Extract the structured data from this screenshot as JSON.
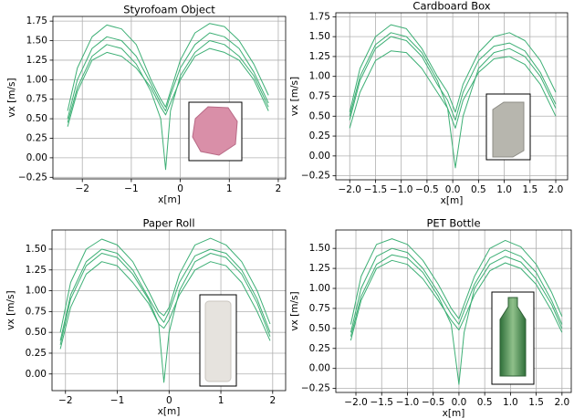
{
  "chart_data": [
    {
      "type": "line",
      "title": "Styrofoam Object",
      "xlabel": "x[m]",
      "ylabel": "vx [m/s]",
      "color": "#3daf75",
      "grid": true,
      "xlim": [
        -2.6,
        2.15
      ],
      "ylim": [
        -0.27,
        1.81
      ],
      "xticks": [
        {
          "value": -2,
          "label": "−2"
        },
        {
          "value": -1,
          "label": "−1"
        },
        0,
        1,
        2
      ],
      "yticks": [
        {
          "value": -0.25,
          "label": "−0.25"
        },
        {
          "value": 0,
          "label": "0.00"
        },
        0.25,
        {
          "value": 0.5,
          "label": "0.50"
        },
        0.75,
        {
          "value": 1,
          "label": "1.00"
        },
        1.25,
        {
          "value": 1.5,
          "label": "1.50"
        },
        1.75
      ],
      "x": [
        -2.3,
        -2.1,
        -1.8,
        -1.5,
        -1.2,
        -0.9,
        -0.6,
        -0.4,
        -0.3,
        -0.2,
        0,
        0.3,
        0.6,
        0.9,
        1.2,
        1.5,
        1.8
      ],
      "series": [
        {
          "values": [
            0.6,
            1.15,
            1.55,
            1.7,
            1.65,
            1.45,
            1.0,
            0.75,
            0.65,
            0.85,
            1.25,
            1.6,
            1.72,
            1.68,
            1.5,
            1.2,
            0.8
          ]
        },
        {
          "values": [
            0.5,
            1.0,
            1.4,
            1.55,
            1.5,
            1.3,
            0.95,
            0.7,
            0.6,
            0.8,
            1.15,
            1.45,
            1.6,
            1.55,
            1.4,
            1.1,
            0.7
          ]
        },
        {
          "values": [
            0.4,
            0.85,
            1.25,
            1.35,
            1.3,
            1.15,
            0.9,
            0.65,
            0.55,
            0.7,
            1.0,
            1.3,
            1.4,
            1.35,
            1.25,
            1.0,
            0.6
          ]
        },
        {
          "values": [
            0.45,
            0.9,
            1.3,
            1.45,
            1.4,
            1.2,
            0.85,
            0.5,
            -0.15,
            0.6,
            1.05,
            1.35,
            1.5,
            1.45,
            1.3,
            1.05,
            0.65
          ]
        }
      ]
    },
    {
      "type": "line",
      "title": "Cardboard Box",
      "xlabel": "x[m]",
      "ylabel": "vx [m/s]",
      "color": "#3daf75",
      "grid": true,
      "xlim": [
        -2.27,
        2.23
      ],
      "ylim": [
        -0.3,
        1.8
      ],
      "xticks": [
        {
          "value": -2,
          "label": "−2.0"
        },
        {
          "value": -1.5,
          "label": "−1.5"
        },
        {
          "value": -1,
          "label": "−1.0"
        },
        {
          "value": -0.5,
          "label": "−0.5"
        },
        {
          "value": 0,
          "label": "0.0"
        },
        0.5,
        {
          "value": 1,
          "label": "1.0"
        },
        1.5,
        {
          "value": 2,
          "label": "2.0"
        }
      ],
      "yticks": [
        {
          "value": -0.25,
          "label": "−0.25"
        },
        {
          "value": 0,
          "label": "0.00"
        },
        0.25,
        {
          "value": 0.5,
          "label": "0.50"
        },
        0.75,
        {
          "value": 1,
          "label": "1.00"
        },
        1.25,
        {
          "value": 1.5,
          "label": "1.50"
        },
        1.75
      ],
      "x": [
        -2.0,
        -1.8,
        -1.5,
        -1.2,
        -0.9,
        -0.6,
        -0.3,
        -0.1,
        0.05,
        0.2,
        0.5,
        0.8,
        1.1,
        1.4,
        1.7,
        2.0
      ],
      "series": [
        {
          "values": [
            0.55,
            1.1,
            1.5,
            1.65,
            1.6,
            1.35,
            1.0,
            0.8,
            0.55,
            0.9,
            1.3,
            1.5,
            1.55,
            1.45,
            1.2,
            0.8
          ]
        },
        {
          "values": [
            0.45,
            0.95,
            1.35,
            1.5,
            1.45,
            1.25,
            0.9,
            0.7,
            0.45,
            0.8,
            1.2,
            1.38,
            1.42,
            1.32,
            1.05,
            0.65
          ]
        },
        {
          "values": [
            0.35,
            0.8,
            1.2,
            1.32,
            1.3,
            1.1,
            0.8,
            0.6,
            0.35,
            0.7,
            1.05,
            1.22,
            1.25,
            1.15,
            0.9,
            0.5
          ]
        },
        {
          "values": [
            0.5,
            1.0,
            1.4,
            1.55,
            1.5,
            1.3,
            0.95,
            0.6,
            -0.15,
            0.5,
            1.1,
            1.3,
            1.35,
            1.25,
            1.0,
            0.6
          ]
        }
      ]
    },
    {
      "type": "line",
      "title": "Paper Roll",
      "xlabel": "x[m]",
      "ylabel": "vx [m/s]",
      "color": "#3daf75",
      "grid": true,
      "xlim": [
        -2.26,
        2.25
      ],
      "ylim": [
        -0.2,
        1.73
      ],
      "xticks": [
        {
          "value": -2,
          "label": "−2"
        },
        {
          "value": -1,
          "label": "−1"
        },
        0,
        1,
        2
      ],
      "yticks": [
        {
          "value": 0,
          "label": "0.00"
        },
        0.25,
        {
          "value": 0.5,
          "label": "0.50"
        },
        0.75,
        {
          "value": 1,
          "label": "1.00"
        },
        1.25,
        {
          "value": 1.5,
          "label": "1.50"
        }
      ],
      "x": [
        -2.1,
        -1.9,
        -1.6,
        -1.3,
        -1.0,
        -0.7,
        -0.4,
        -0.2,
        -0.1,
        0,
        0.2,
        0.5,
        0.8,
        1.1,
        1.4,
        1.7,
        1.95
      ],
      "series": [
        {
          "values": [
            0.5,
            1.1,
            1.5,
            1.62,
            1.55,
            1.35,
            1.0,
            0.75,
            0.7,
            0.8,
            1.2,
            1.55,
            1.63,
            1.55,
            1.35,
            1.0,
            0.6
          ]
        },
        {
          "values": [
            0.4,
            0.95,
            1.35,
            1.5,
            1.45,
            1.25,
            0.92,
            0.7,
            0.62,
            0.75,
            1.1,
            1.42,
            1.5,
            1.45,
            1.25,
            0.9,
            0.5
          ]
        },
        {
          "values": [
            0.3,
            0.8,
            1.2,
            1.35,
            1.3,
            1.1,
            0.85,
            0.6,
            0.55,
            0.65,
            0.95,
            1.25,
            1.35,
            1.3,
            1.1,
            0.75,
            0.4
          ]
        },
        {
          "values": [
            0.35,
            0.9,
            1.3,
            1.45,
            1.4,
            1.2,
            0.9,
            0.6,
            -0.1,
            0.5,
            1.0,
            1.35,
            1.45,
            1.4,
            1.2,
            0.85,
            0.45
          ]
        }
      ]
    },
    {
      "type": "line",
      "title": "PET Bottle",
      "xlabel": "x[m]",
      "ylabel": "vx [m/s]",
      "color": "#3daf75",
      "grid": true,
      "xlim": [
        -2.39,
        2.18
      ],
      "ylim": [
        -0.3,
        1.73
      ],
      "xticks": [
        {
          "value": -2,
          "label": "−2.0"
        },
        {
          "value": -1.5,
          "label": "−1.5"
        },
        {
          "value": -1,
          "label": "−1.0"
        },
        {
          "value": -0.5,
          "label": "−0.5"
        },
        {
          "value": 0,
          "label": "0.0"
        },
        0.5,
        {
          "value": 1,
          "label": "1.0"
        },
        1.5,
        {
          "value": 2,
          "label": "2.0"
        }
      ],
      "yticks": [
        {
          "value": -0.25,
          "label": "−0.25"
        },
        {
          "value": 0,
          "label": "0.00"
        },
        0.25,
        {
          "value": 0.5,
          "label": "0.50"
        },
        0.75,
        {
          "value": 1,
          "label": "1.00"
        },
        1.25,
        {
          "value": 1.5,
          "label": "1.50"
        }
      ],
      "x": [
        -2.1,
        -1.9,
        -1.6,
        -1.3,
        -1.0,
        -0.7,
        -0.4,
        -0.15,
        0,
        0.1,
        0.3,
        0.6,
        0.9,
        1.2,
        1.5,
        1.8,
        2.0
      ],
      "series": [
        {
          "values": [
            0.55,
            1.15,
            1.55,
            1.62,
            1.55,
            1.35,
            1.05,
            0.75,
            0.62,
            0.8,
            1.15,
            1.5,
            1.6,
            1.52,
            1.3,
            0.95,
            0.65
          ]
        },
        {
          "values": [
            0.45,
            1.0,
            1.4,
            1.5,
            1.45,
            1.25,
            0.95,
            0.68,
            0.55,
            0.72,
            1.05,
            1.38,
            1.48,
            1.4,
            1.2,
            0.85,
            0.55
          ]
        },
        {
          "values": [
            0.35,
            0.85,
            1.25,
            1.35,
            1.3,
            1.12,
            0.85,
            0.6,
            0.48,
            0.62,
            0.92,
            1.22,
            1.32,
            1.25,
            1.05,
            0.72,
            0.45
          ]
        },
        {
          "values": [
            0.4,
            0.9,
            1.3,
            1.42,
            1.38,
            1.2,
            0.9,
            0.55,
            -0.2,
            0.45,
            1.0,
            1.3,
            1.4,
            1.33,
            1.12,
            0.8,
            0.5
          ]
        }
      ]
    }
  ]
}
